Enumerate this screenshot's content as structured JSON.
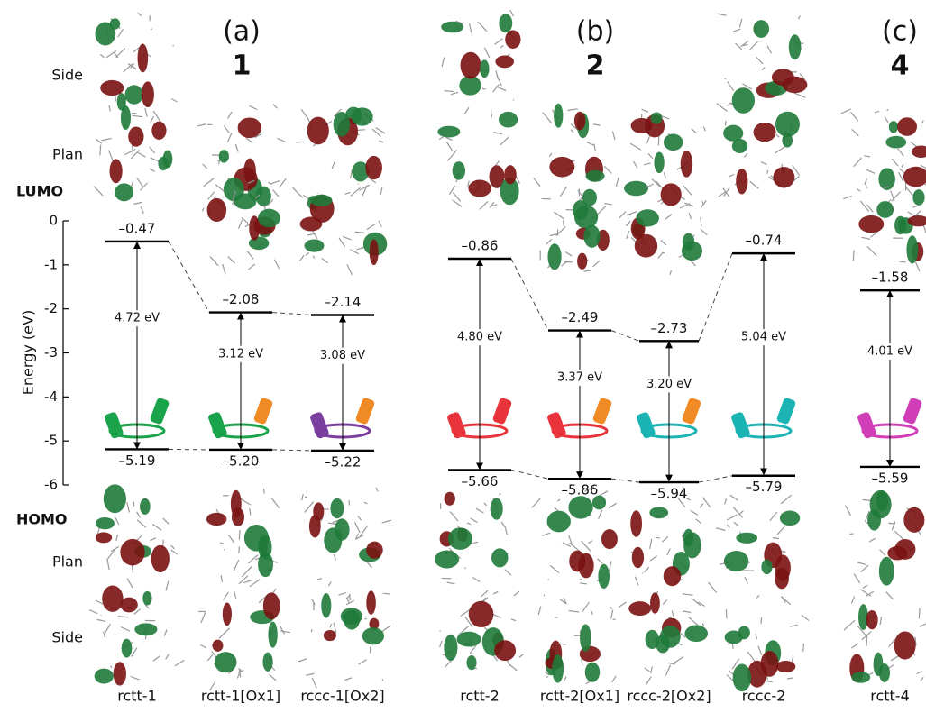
{
  "chart_data": {
    "type": "energy-diagram",
    "y_label": "Energy (eV)",
    "ylim": [
      -6,
      0
    ],
    "yticks": [
      0,
      -1,
      -2,
      -3,
      -4,
      -5,
      -6
    ],
    "panels": [
      {
        "label": "(a)",
        "compound": "1"
      },
      {
        "label": "(b)",
        "compound": "2"
      },
      {
        "label": "(c)",
        "compound": "4"
      }
    ],
    "row_labels": [
      "Side",
      "Plan",
      "LUMO",
      "HOMO",
      "Plan",
      "Side"
    ],
    "categories": [
      "rctt-1",
      "rctt-1[Ox1]",
      "rccc-1[Ox2]",
      "rctt-2",
      "rctt-2[Ox1]",
      "rccc-2[Ox2]",
      "rccc-2",
      "rctt-4"
    ],
    "series": [
      {
        "name": "LUMO",
        "color": "#000000",
        "values": [
          -0.47,
          -2.08,
          -2.14,
          -0.86,
          -2.49,
          -2.73,
          -0.74,
          -1.58
        ],
        "value_labels": [
          "–0.47",
          "–2.08",
          "–2.14",
          "–0.86",
          "–2.49",
          "–2.73",
          "–0.74",
          "–1.58"
        ]
      },
      {
        "name": "HOMO",
        "color": "#000000",
        "values": [
          -5.19,
          -5.2,
          -5.22,
          -5.66,
          -5.86,
          -5.94,
          -5.79,
          -5.59
        ],
        "value_labels": [
          "–5.19",
          "–5.20",
          "–5.22",
          "–5.66",
          "–5.86",
          "–5.94",
          "–5.79",
          "–5.59"
        ]
      }
    ],
    "gaps": [
      4.72,
      3.12,
      3.08,
      4.8,
      3.37,
      3.2,
      5.04,
      4.01
    ],
    "gap_labels": [
      "4.72 eV",
      "3.12 eV",
      "3.08 eV",
      "4.80 eV",
      "3.37 eV",
      "3.20 eV",
      "5.04 eV",
      "4.01 eV"
    ]
  }
}
